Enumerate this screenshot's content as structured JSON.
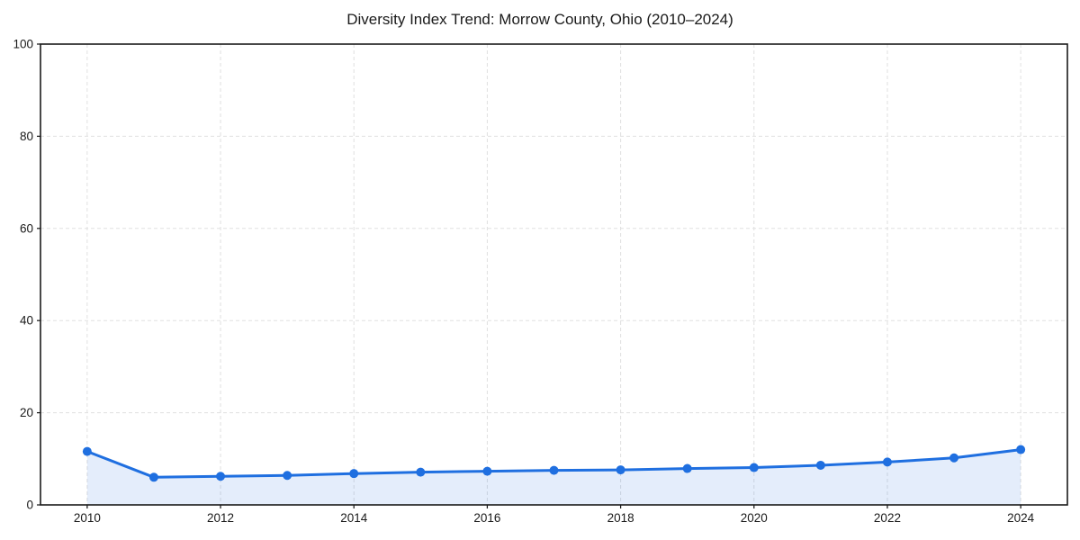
{
  "page": {
    "background_color": "#ffffff"
  },
  "chart_data": {
    "type": "area",
    "title": "Diversity Index Trend: Morrow County, Ohio (2010–2024)",
    "x": [
      2010,
      2011,
      2012,
      2013,
      2014,
      2015,
      2016,
      2017,
      2018,
      2019,
      2020,
      2021,
      2022,
      2023,
      2024
    ],
    "values": [
      11.6,
      6.0,
      6.2,
      6.4,
      6.8,
      7.1,
      7.3,
      7.5,
      7.6,
      7.9,
      8.1,
      8.6,
      9.3,
      10.2,
      12.0
    ],
    "series_name": "Diversity Index",
    "xlabel": "",
    "ylabel": "",
    "xticks": [
      2010,
      2012,
      2014,
      2016,
      2018,
      2020,
      2022,
      2024
    ],
    "yticks": [
      0,
      20,
      40,
      60,
      80,
      100
    ],
    "ylim": [
      0,
      100
    ],
    "grid": true,
    "grid_style": "dashed",
    "legend": "none",
    "marker": "circle",
    "style": {
      "line_color": "#1f6fe0",
      "marker_color": "#1f6fe0",
      "fill_color": "#1f6fe0",
      "fill_opacity": 0.12,
      "grid_color": "#e0e0e0",
      "spine_color": "#1a1a1a",
      "tick_color": "#1a1a1a",
      "text_color": "#1a1a1a"
    }
  }
}
